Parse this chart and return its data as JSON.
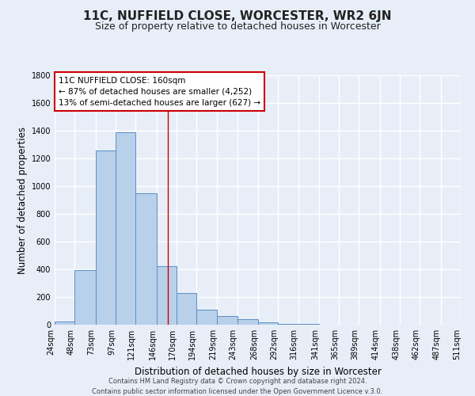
{
  "title": "11C, NUFFIELD CLOSE, WORCESTER, WR2 6JN",
  "subtitle": "Size of property relative to detached houses in Worcester",
  "xlabel": "Distribution of detached houses by size in Worcester",
  "ylabel": "Number of detached properties",
  "footnote1": "Contains HM Land Registry data © Crown copyright and database right 2024.",
  "footnote2": "Contains public sector information licensed under the Open Government Licence v.3.0.",
  "bar_left_edges": [
    24,
    48,
    73,
    97,
    121,
    146,
    170,
    194,
    219,
    243,
    268,
    292,
    316,
    341,
    365,
    389,
    414,
    438,
    462,
    487
  ],
  "bar_widths": [
    24,
    25,
    24,
    24,
    25,
    24,
    24,
    25,
    24,
    25,
    24,
    24,
    25,
    24,
    24,
    25,
    24,
    24,
    25,
    24
  ],
  "bar_heights": [
    25,
    395,
    1260,
    1390,
    950,
    425,
    230,
    110,
    65,
    40,
    15,
    5,
    5,
    2,
    2,
    2,
    0,
    0,
    0,
    2
  ],
  "bar_color": "#b8d0ea",
  "bar_edge_color": "#5b8ec4",
  "tick_labels": [
    "24sqm",
    "48sqm",
    "73sqm",
    "97sqm",
    "121sqm",
    "146sqm",
    "170sqm",
    "194sqm",
    "219sqm",
    "243sqm",
    "268sqm",
    "292sqm",
    "316sqm",
    "341sqm",
    "365sqm",
    "389sqm",
    "414sqm",
    "438sqm",
    "462sqm",
    "487sqm",
    "511sqm"
  ],
  "ylim": [
    0,
    1800
  ],
  "yticks": [
    0,
    200,
    400,
    600,
    800,
    1000,
    1200,
    1400,
    1600,
    1800
  ],
  "property_line_x": 160,
  "annotation_line1": "11C NUFFIELD CLOSE: 160sqm",
  "annotation_line2": "← 87% of detached houses are smaller (4,252)",
  "annotation_line3": "13% of semi-detached houses are larger (627) →",
  "bg_color": "#e8eef8",
  "grid_color": "#ffffff",
  "title_fontsize": 11,
  "subtitle_fontsize": 9,
  "axis_label_fontsize": 8.5,
  "tick_fontsize": 7,
  "annotation_fontsize": 7.5,
  "footnote_fontsize": 6
}
